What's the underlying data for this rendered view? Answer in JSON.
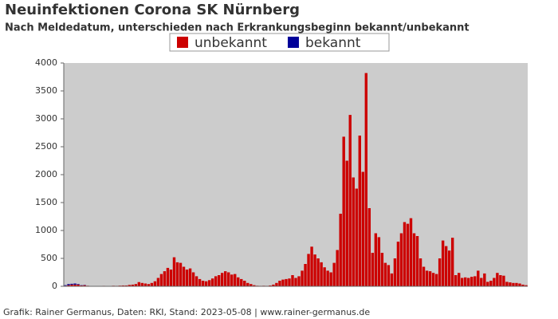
{
  "chart_data": {
    "type": "stacked_bar",
    "title": "Neuinfektionen Corona SK Nürnberg",
    "subtitle": "Nach Meldedatum, unterschieden nach Erkrankungsbeginn bekannt/unbekannt",
    "footer": "Grafik: Rainer Germanus, Daten: RKI, Stand: 2023-05-08 | www.rainer-germanus.de",
    "categories": [
      null,
      null,
      null,
      null,
      null,
      null,
      null,
      null,
      null,
      null,
      null,
      null,
      null,
      null,
      null,
      null,
      null,
      null,
      null,
      null,
      null,
      null,
      null,
      null,
      null,
      null,
      null,
      null,
      null,
      null,
      null,
      null,
      null,
      null,
      null,
      null,
      null,
      null,
      null,
      null,
      null,
      null,
      null,
      null,
      null,
      null,
      null,
      null,
      null,
      null,
      null,
      null,
      null,
      null,
      null,
      null,
      null,
      null,
      null,
      null,
      null,
      null,
      null,
      null,
      null,
      null,
      null,
      null,
      null,
      null,
      null,
      null,
      null,
      null,
      null,
      null,
      null,
      null,
      null,
      null,
      null,
      null,
      null,
      null,
      null,
      null,
      null,
      null,
      null,
      null,
      null,
      null,
      null,
      null,
      null,
      null,
      null,
      null,
      null,
      null,
      null,
      null,
      null,
      null,
      null,
      null,
      null,
      null,
      null,
      null,
      null,
      null,
      null,
      null,
      null,
      null,
      null,
      null,
      null,
      null,
      null,
      null,
      null,
      null,
      null,
      null,
      null,
      null,
      null,
      null,
      null,
      null,
      null,
      null,
      null,
      null,
      null,
      null,
      null,
      null,
      null,
      null,
      null,
      null,
      null
    ],
    "series": [
      {
        "name": "unbekannt",
        "color": "#cc0000",
        "values": [
          10,
          20,
          30,
          30,
          30,
          15,
          20,
          10,
          5,
          5,
          3,
          5,
          8,
          5,
          5,
          10,
          8,
          12,
          15,
          15,
          25,
          30,
          40,
          75,
          60,
          50,
          40,
          60,
          90,
          150,
          220,
          270,
          330,
          300,
          520,
          430,
          420,
          350,
          300,
          320,
          250,
          180,
          130,
          100,
          90,
          110,
          140,
          180,
          200,
          240,
          270,
          250,
          210,
          220,
          160,
          130,
          100,
          60,
          40,
          20,
          10,
          8,
          10,
          8,
          15,
          30,
          60,
          100,
          120,
          130,
          140,
          200,
          150,
          180,
          280,
          400,
          580,
          710,
          570,
          500,
          430,
          340,
          280,
          250,
          420,
          650,
          1300,
          2680,
          2250,
          3070,
          1950,
          1750,
          2700,
          2050,
          3820,
          1400,
          600,
          950,
          880,
          600,
          420,
          380,
          230,
          500,
          800,
          950,
          1150,
          1120,
          1220,
          950,
          900,
          500,
          350,
          280,
          270,
          240,
          220,
          500,
          820,
          720,
          640,
          870,
          200,
          240,
          150,
          160,
          150,
          170,
          180,
          280,
          150,
          230,
          80,
          100,
          150,
          240,
          200,
          190,
          80,
          70,
          60,
          60,
          50,
          30,
          20
        ]
      },
      {
        "name": "bekannt",
        "color": "#000099",
        "values": [
          10,
          20,
          15,
          20,
          10,
          5,
          5,
          0,
          0,
          0,
          0,
          0,
          0,
          0,
          0,
          0,
          0,
          0,
          0,
          0,
          0,
          0,
          0,
          0,
          0,
          0,
          0,
          0,
          0,
          0,
          0,
          0,
          0,
          0,
          0,
          0,
          0,
          0,
          0,
          0,
          0,
          0,
          0,
          0,
          0,
          0,
          0,
          0,
          0,
          0,
          0,
          0,
          0,
          0,
          0,
          0,
          0,
          0,
          0,
          0,
          0,
          0,
          0,
          0,
          0,
          0,
          0,
          0,
          0,
          0,
          0,
          0,
          0,
          0,
          0,
          0,
          0,
          0,
          0,
          0,
          0,
          0,
          0,
          0,
          0,
          0,
          0,
          0,
          0,
          0,
          0,
          0,
          0,
          0,
          0,
          0,
          0,
          0,
          0,
          0,
          0,
          0,
          0,
          0,
          0,
          0,
          0,
          0,
          0,
          0,
          0,
          0,
          0,
          0,
          0,
          0,
          0,
          0,
          0,
          0,
          0,
          0,
          0,
          0,
          0,
          0,
          0,
          0,
          0,
          0,
          0,
          0,
          0,
          0,
          0,
          0,
          0,
          0,
          0,
          0,
          0,
          0,
          0,
          0,
          0
        ]
      }
    ],
    "ylim": [
      0,
      4000
    ],
    "yticks": [
      0,
      500,
      1000,
      1500,
      2000,
      2500,
      3000,
      3500,
      4000
    ],
    "plot_background": "#cccccc",
    "legend": "top"
  }
}
